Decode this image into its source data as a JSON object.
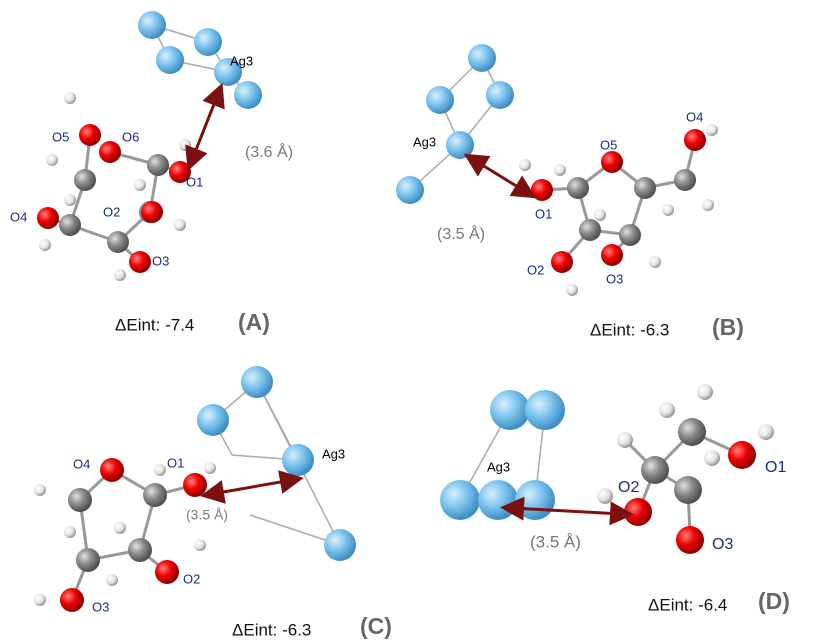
{
  "panels": [
    {
      "label": "(A)",
      "energy": "ΔEint: -7.4",
      "distance": "(3.6 Å)",
      "cluster_label": "Ag3",
      "atom_labels": [
        "O5",
        "O6",
        "O1",
        "O2",
        "O4",
        "O3"
      ]
    },
    {
      "label": "(B)",
      "energy": "ΔEint: -6.3",
      "distance": "(3.5 Å)",
      "cluster_label": "Ag3",
      "atom_labels": [
        "O4",
        "O5",
        "O1",
        "O2",
        "O3"
      ]
    },
    {
      "label": "(C)",
      "energy": "ΔEint: -6.3",
      "distance": "(3.5 Å)",
      "cluster_label": "Ag3",
      "atom_labels": [
        "O4",
        "O1",
        "O2",
        "O3"
      ]
    },
    {
      "label": "(D)",
      "energy": "ΔEint: -6.4",
      "distance": "(3.5 Å)",
      "cluster_label": "Ag3",
      "atom_labels": [
        "O2",
        "O1",
        "O3"
      ]
    }
  ]
}
